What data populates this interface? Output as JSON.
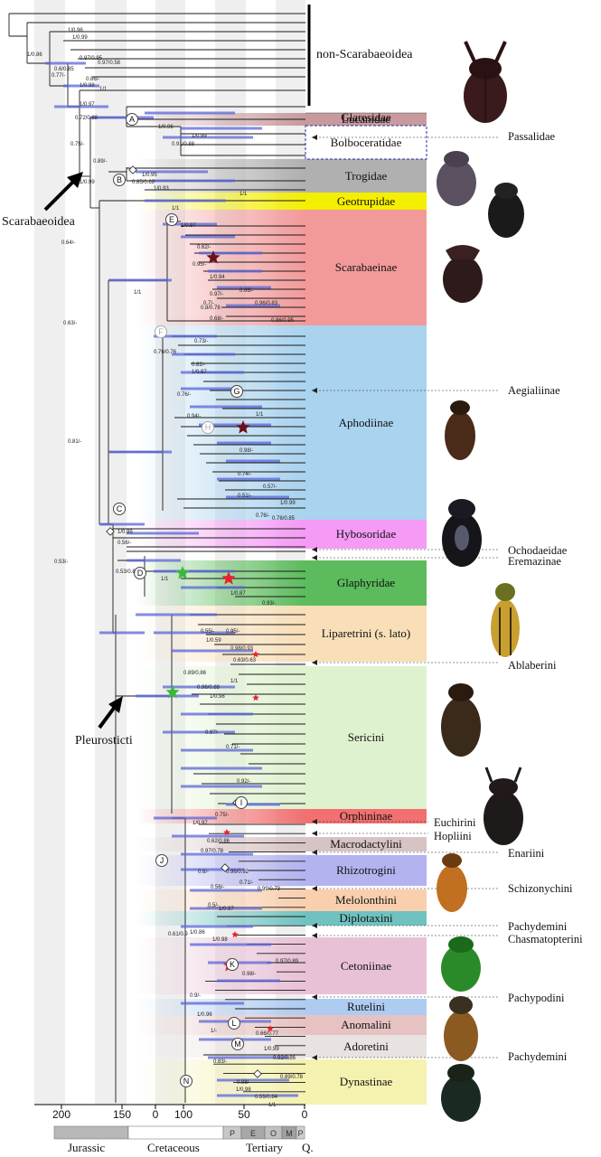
{
  "groups": {
    "non_scarabaeoidea": "non-Scarabaeoidea",
    "scarabaeoidea": "Scarabaeoidea",
    "pleurosticti": "Pleurosticti"
  },
  "clades": [
    {
      "label": "Glaresidae",
      "color": "#ffffff"
    },
    {
      "label": "Lucanidae",
      "color": "#c89a9e"
    },
    {
      "label": "Bolboceratidae",
      "color": "#ffffff"
    },
    {
      "label": "Trogidae",
      "color": "#b0b0b0"
    },
    {
      "label": "Geotrupidae",
      "color": "#f4ee00"
    },
    {
      "label": "Scarabaeinae",
      "color": "#f29a9a"
    },
    {
      "label": "Aphodiinae",
      "color": "#a9d3ef"
    },
    {
      "label": "Hybosoridae",
      "color": "#f59af5"
    },
    {
      "label": "Glaphyridae",
      "color": "#5cbb5c"
    },
    {
      "label": "Liparetrini (s. lato)",
      "color": "#f8dfb8"
    },
    {
      "label": "Sericini",
      "color": "#dff2d0"
    },
    {
      "label": "Orphininae",
      "color": "#f27070"
    },
    {
      "label": "Macrodactylini",
      "color": "#d7c3c3"
    },
    {
      "label": "Rhizotrogini",
      "color": "#b3b3f0"
    },
    {
      "label": "Melolonthini",
      "color": "#f9cfae"
    },
    {
      "label": "Diplotaxini",
      "color": "#6fc2c0"
    },
    {
      "label": "Cetoniinae",
      "color": "#e8c1d6"
    },
    {
      "label": "Rutelini",
      "color": "#aecbf2"
    },
    {
      "label": "Anomalini",
      "color": "#e7c2c2"
    },
    {
      "label": "Adoretini",
      "color": "#e8e2e0"
    },
    {
      "label": "Dynastinae",
      "color": "#f5f2b0"
    }
  ],
  "side_labels": {
    "passalidae": "Passalidae",
    "aegialiinae": "Aegialiinae",
    "ochodaeidae": "Ochodaeidae",
    "eremazinae": "Eremazinae",
    "ablaberini": "Ablaberini",
    "euchirini": "Euchirini",
    "hopliini": "Hopliini",
    "enariini": "Enariini",
    "schizonychini": "Schizonychini",
    "pachydemini_1": "Pachydemini",
    "chasmatopterini": "Chasmatopterini",
    "pachypodini": "Pachypodini",
    "pachydemini_2": "Pachydemini"
  },
  "nodes": [
    "A",
    "B",
    "C",
    "D",
    "E",
    "F",
    "G",
    "H",
    "I",
    "J",
    "K",
    "L",
    "M",
    "N"
  ],
  "support_values": [
    "1/0.86",
    "1/0.96",
    "1/0.99",
    "0.97/0.95",
    "0.97/0.58",
    "0.6/0.85",
    "0.77/-",
    "0.86/-",
    "1/0.98",
    "1/1",
    "1/0.97",
    "0.72/0.88",
    "1/0.96",
    "0.75/-",
    "1/0.99",
    "0.91/0.88",
    "0.89/-",
    "1/0.95",
    "0.85/0.69",
    "1/0.93",
    "1/1",
    "1/0.99",
    "1/1",
    "1/0.97",
    "0.64/-",
    "0.62/-",
    "0.95/-",
    "1/0.94",
    "0.97/-",
    "0.7/-",
    "0.8/0.78",
    "0.68/-",
    "0.96/0.83",
    "0.86/0.95",
    "0.66/-",
    "0.63/-",
    "1/1",
    "0.73/-",
    "0.76/0.76",
    "0.82/-",
    "1/0.97",
    "0.76/-",
    "0.94/-",
    "1/1",
    "0.98/-",
    "0.74/-",
    "0.51/-",
    "0.76/-",
    "0.57/-",
    "0.76/0.85",
    "1/0.99",
    "0.81/-",
    "1/0.99",
    "0.56/-",
    "0.53/0.8",
    "1/1",
    "1/0.87",
    "0.93/-",
    "0.53/-",
    "0.55/-",
    "0.95/-",
    "1/0.59",
    "0.98/0.93",
    "0.63/0.63",
    "0.89/0.86",
    "1/1",
    "0.96/0.88",
    "1/0.98",
    "0.97/-",
    "0.71/-",
    "0.92/-",
    "0.75/-",
    "1/0.97",
    "0.62/0.86",
    "0.97/0.78",
    "0.6/-",
    "0.96/0.92",
    "0.71/-",
    "0.99/0.73",
    "0.56/-",
    "0.5/-",
    "1/0.97",
    "0.61/0.9",
    "1/0.86",
    "1/0.98",
    "0.97/0.89",
    "0.98/-",
    "0.9/-",
    "1/0.96",
    "1/-",
    "0.66/0.77",
    "1/0.99",
    "0.92/0.86",
    "0.83/-",
    "0.98/-",
    "0.89/0.78",
    "1/0.98",
    "0.55/0.84",
    "1/1"
  ],
  "axis": {
    "ticks": [
      "200",
      "150",
      "0",
      "100",
      "50",
      "0"
    ],
    "periods": [
      "P",
      "E",
      "O",
      "M",
      "P"
    ],
    "eras": [
      "Jurassic",
      "Cretaceous",
      "Tertiary",
      "Q."
    ]
  },
  "colors": {
    "branch": "#1a1a1a",
    "hpd_bar": "#5a66d8",
    "star_red": "#e8212a",
    "star_green": "#3cb83c",
    "star_dark": "#6a1018"
  }
}
